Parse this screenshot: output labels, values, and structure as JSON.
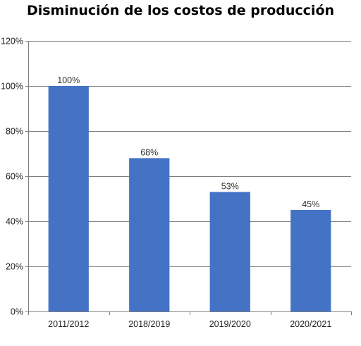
{
  "chart_data": {
    "type": "bar",
    "title": "Disminución de los costos de producción",
    "categories": [
      "2011/2012",
      "2018/2019",
      "2019/2020",
      "2020/2021"
    ],
    "values": [
      100,
      68,
      53,
      45
    ],
    "data_labels": [
      "100%",
      "68%",
      "53%",
      "45%"
    ],
    "y_ticks": [
      0,
      20,
      40,
      60,
      80,
      100,
      120
    ],
    "y_tick_labels": [
      "0%",
      "20%",
      "40%",
      "60%",
      "80%",
      "100%",
      "120%"
    ],
    "ylim": [
      0,
      120
    ],
    "xlabel": "",
    "ylabel": "",
    "grid": true,
    "legend": "none",
    "bar_color": "#4472c4",
    "grid_color": "#808080"
  }
}
